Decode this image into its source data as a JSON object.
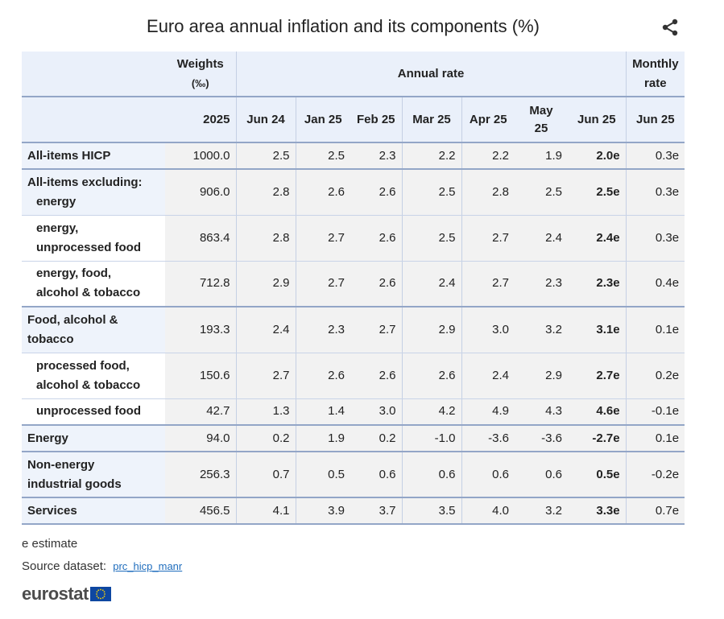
{
  "title": "Euro area annual inflation and its components (%)",
  "icons": {
    "share": "share-icon",
    "flag": "eu-flag-icon"
  },
  "header": {
    "weights_label": "Weights",
    "weights_unit": "(‰)",
    "annual_rate": "Annual rate",
    "monthly_rate_line1": "Monthly",
    "monthly_rate_line2": "rate",
    "columns": [
      "2025",
      "Jun 24",
      "Jan 25",
      "Feb 25",
      "Mar 25",
      "Apr 25",
      "May 25",
      "Jun 25",
      "Jun 25"
    ]
  },
  "rows": [
    {
      "label": "All-items HICP",
      "weight": "1000.0",
      "values": [
        "2.5",
        "2.5",
        "2.3",
        "2.2",
        "2.2",
        "1.9",
        "2.0e",
        "0.3e"
      ]
    },
    {
      "label": "All-items excluding:",
      "label2": "energy",
      "weight": "906.0",
      "values": [
        "2.8",
        "2.6",
        "2.6",
        "2.5",
        "2.8",
        "2.5",
        "2.5e",
        "0.3e"
      ]
    },
    {
      "label": "energy,",
      "label2": "unprocessed food",
      "weight": "863.4",
      "values": [
        "2.8",
        "2.7",
        "2.6",
        "2.5",
        "2.7",
        "2.4",
        "2.4e",
        "0.3e"
      ]
    },
    {
      "label": "energy, food,",
      "label2": "alcohol & tobacco",
      "weight": "712.8",
      "values": [
        "2.9",
        "2.7",
        "2.6",
        "2.4",
        "2.7",
        "2.3",
        "2.3e",
        "0.4e"
      ]
    },
    {
      "label": "Food, alcohol &",
      "label2": "tobacco",
      "weight": "193.3",
      "values": [
        "2.4",
        "2.3",
        "2.7",
        "2.9",
        "3.0",
        "3.2",
        "3.1e",
        "0.1e"
      ]
    },
    {
      "label": "processed food,",
      "label2": "alcohol & tobacco",
      "weight": "150.6",
      "values": [
        "2.7",
        "2.6",
        "2.6",
        "2.6",
        "2.4",
        "2.9",
        "2.7e",
        "0.2e"
      ]
    },
    {
      "label": "unprocessed food",
      "weight": "42.7",
      "values": [
        "1.3",
        "1.4",
        "3.0",
        "4.2",
        "4.9",
        "4.3",
        "4.6e",
        "-0.1e"
      ]
    },
    {
      "label": "Energy",
      "weight": "94.0",
      "values": [
        "0.2",
        "1.9",
        "0.2",
        "-1.0",
        "-3.6",
        "-3.6",
        "-2.7e",
        "0.1e"
      ]
    },
    {
      "label": "Non-energy",
      "label2": "industrial goods",
      "weight": "256.3",
      "values": [
        "0.7",
        "0.5",
        "0.6",
        "0.6",
        "0.6",
        "0.6",
        "0.5e",
        "-0.2e"
      ]
    },
    {
      "label": "Services",
      "weight": "456.5",
      "values": [
        "4.1",
        "3.9",
        "3.7",
        "3.5",
        "4.0",
        "3.2",
        "3.3e",
        "0.7e"
      ]
    }
  ],
  "footer": {
    "note": "e estimate",
    "source_label": "Source dataset:",
    "source_link": "prc_hicp_manr",
    "logo": "eurostat"
  }
}
